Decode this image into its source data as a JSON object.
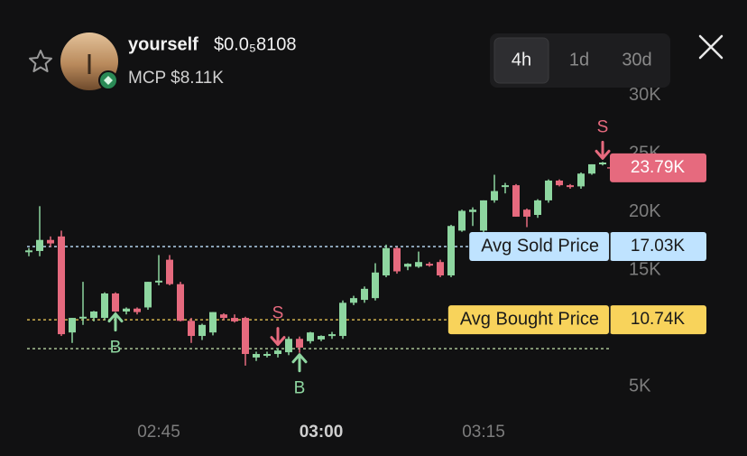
{
  "header": {
    "name": "yourself",
    "price": "$0.0₅8108",
    "market_cap": "MCP $8.11K"
  },
  "timeframes": {
    "options": [
      "4h",
      "1d",
      "30d"
    ],
    "active": 0
  },
  "chart_data": {
    "type": "candlestick",
    "x": [
      "02:33",
      "02:34",
      "02:35",
      "02:36",
      "02:37",
      "02:38",
      "02:39",
      "02:40",
      "02:41",
      "02:42",
      "02:43",
      "02:44",
      "02:45",
      "02:46",
      "02:47",
      "02:48",
      "02:49",
      "02:50",
      "02:51",
      "02:52",
      "02:53",
      "02:54",
      "02:55",
      "02:56",
      "02:57",
      "02:58",
      "02:59",
      "03:00",
      "03:01",
      "03:02",
      "03:03",
      "03:04",
      "03:05",
      "03:06",
      "03:07",
      "03:08",
      "03:09",
      "03:10",
      "03:11",
      "03:12",
      "03:13",
      "03:14",
      "03:15",
      "03:16",
      "03:17",
      "03:18",
      "03:19",
      "03:20",
      "03:21",
      "03:22",
      "03:23",
      "03:24",
      "03:25",
      "03:26"
    ],
    "open": [
      16600,
      16650,
      17600,
      17900,
      9650,
      10900,
      10900,
      10900,
      13000,
      11450,
      11700,
      11800,
      14000,
      15900,
      13800,
      10650,
      9350,
      9650,
      11200,
      10900,
      10900,
      7500,
      7800,
      7800,
      7950,
      9100,
      8900,
      9050,
      9350,
      9350,
      12200,
      12450,
      12600,
      14550,
      16900,
      15300,
      15300,
      15550,
      15700,
      14550,
      18400,
      20000,
      18400,
      21000,
      22200,
      22300,
      20200,
      19750,
      21000,
      22700,
      22300,
      22200,
      23300,
      24100
    ],
    "high": [
      16900,
      20500,
      17900,
      18400,
      10900,
      14000,
      11500,
      13100,
      13100,
      11800,
      11800,
      14000,
      16300,
      16300,
      14000,
      10900,
      10400,
      11400,
      11300,
      11200,
      11000,
      8000,
      8000,
      8300,
      9300,
      9300,
      9700,
      9400,
      9700,
      12400,
      12800,
      13600,
      15600,
      17200,
      17000,
      15600,
      16600,
      15700,
      15900,
      18900,
      20200,
      20400,
      21000,
      23200,
      22500,
      22400,
      20300,
      21100,
      22800,
      22800,
      22400,
      23400,
      24100,
      24300
    ],
    "low": [
      16200,
      16200,
      17000,
      9350,
      8750,
      10300,
      10600,
      10700,
      11400,
      11200,
      11200,
      11600,
      13700,
      13700,
      10600,
      8750,
      9000,
      9400,
      10700,
      10500,
      6800,
      7200,
      7500,
      7500,
      7700,
      7900,
      8700,
      8900,
      9100,
      9100,
      12000,
      12200,
      12400,
      14400,
      14700,
      15000,
      15200,
      15300,
      14400,
      14400,
      18300,
      18800,
      18200,
      20800,
      21600,
      19600,
      18700,
      19500,
      20800,
      22200,
      22000,
      22000,
      23200,
      24000
    ],
    "close": [
      16700,
      17600,
      17300,
      9500,
      10900,
      11000,
      11450,
      13000,
      11450,
      11700,
      11400,
      14000,
      14100,
      13800,
      10650,
      9350,
      10300,
      11400,
      10900,
      10600,
      7800,
      7800,
      7800,
      8100,
      9100,
      8350,
      9650,
      9350,
      9500,
      12200,
      12600,
      13400,
      14800,
      16900,
      14900,
      15550,
      15700,
      15400,
      14550,
      18800,
      20100,
      20200,
      21000,
      21800,
      22300,
      19600,
      19600,
      21000,
      22700,
      22300,
      22200,
      23300,
      24100,
      24250
    ],
    "up_color": "#8ed6a0",
    "down_color": "#e66a7e",
    "ylim": [
      4000,
      31000
    ],
    "yticks": [
      {
        "value": 5000,
        "label": "5K"
      },
      {
        "value": 10000,
        "label": "10K"
      },
      {
        "value": 15000,
        "label": "15K"
      },
      {
        "value": 20000,
        "label": "20K"
      },
      {
        "value": 25000,
        "label": "25K"
      },
      {
        "value": 30000,
        "label": "30K"
      }
    ],
    "xticks": [
      "02:45",
      "03:00",
      "03:15"
    ],
    "bold_xtick": 1,
    "current_price": {
      "value": 23790,
      "label": "23.79K",
      "color": "#e66a7e"
    },
    "levels": [
      {
        "name": "Avg Sold Price",
        "value": 17030,
        "value_label": "17.03K",
        "color": "#bfe3ff"
      },
      {
        "name": "Avg Bought Price",
        "value": 10740,
        "value_label": "10.74K",
        "color": "#f8d35b"
      },
      {
        "value": 8260,
        "color": "#c8e6b0"
      }
    ],
    "trades": [
      {
        "x": "02:41",
        "side": "B"
      },
      {
        "x": "02:56",
        "side": "S"
      },
      {
        "x": "02:58",
        "side": "B"
      },
      {
        "x": "03:26",
        "side": "S"
      }
    ]
  }
}
